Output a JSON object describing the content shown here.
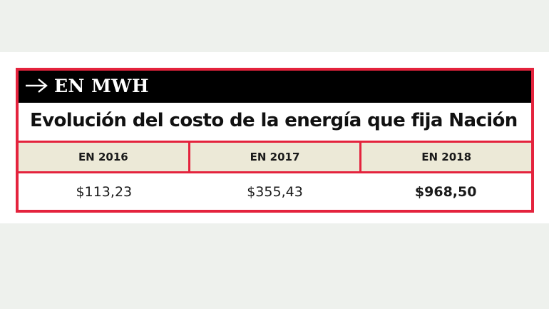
{
  "graphic": {
    "header_label": "EN MWH",
    "title": "Evolución del costo de la energía que fija Nación",
    "arrow_icon": "arrow-right-icon",
    "colors": {
      "accent": "#e4233d",
      "header_bg": "#000000",
      "column_header_bg": "#ece9d7"
    }
  },
  "table": {
    "headers": [
      "EN 2016",
      "EN 2017",
      "EN 2018"
    ],
    "values": [
      "$113,23",
      "$355,43",
      "$968,50"
    ],
    "emphasized_value_index": 2
  }
}
